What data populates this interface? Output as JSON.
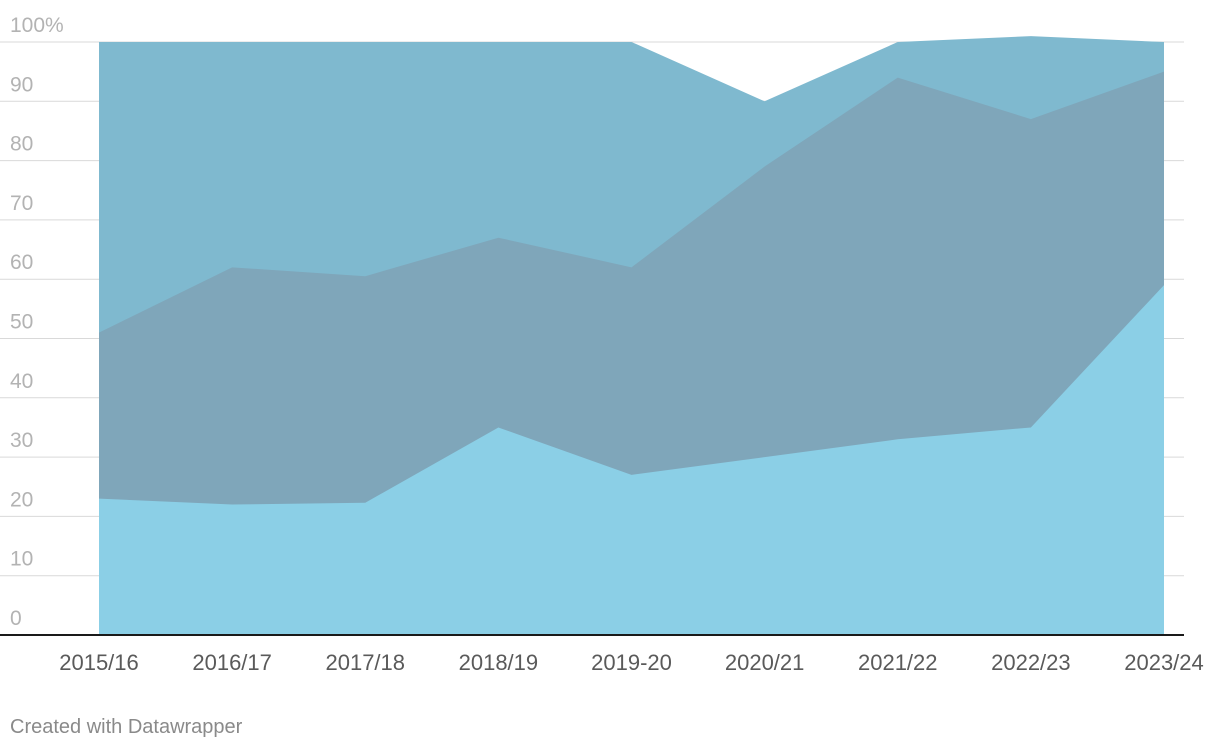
{
  "chart_data": {
    "type": "area",
    "categories": [
      "2015/16",
      "2016/17",
      "2017/18",
      "2018/19",
      "2019-20",
      "2020/21",
      "2021/22",
      "2022/23",
      "2023/24"
    ],
    "series": [
      {
        "values": [
          100,
          100,
          100,
          100,
          100,
          90,
          100,
          101,
          100
        ],
        "color": "#7fb9cf"
      },
      {
        "values": [
          51,
          62,
          60.5,
          67,
          62,
          79,
          94,
          87,
          95
        ],
        "color": "#7fa6ba"
      },
      {
        "values": [
          23,
          22,
          22.3,
          35,
          27,
          30,
          33,
          35,
          59
        ],
        "color": "#8bcfe6"
      }
    ],
    "ylim": [
      0,
      100
    ],
    "y_ticks": [
      {
        "value": 0,
        "label": "0"
      },
      {
        "value": 10,
        "label": "10"
      },
      {
        "value": 20,
        "label": "20"
      },
      {
        "value": 30,
        "label": "30"
      },
      {
        "value": 40,
        "label": "40"
      },
      {
        "value": 50,
        "label": "50"
      },
      {
        "value": 60,
        "label": "60"
      },
      {
        "value": 70,
        "label": "70"
      },
      {
        "value": 80,
        "label": "80"
      },
      {
        "value": 90,
        "label": "90"
      },
      {
        "value": 100,
        "label": "100%"
      }
    ],
    "grid": true,
    "legend": "none"
  },
  "footer": {
    "credit": "Created with Datawrapper"
  }
}
